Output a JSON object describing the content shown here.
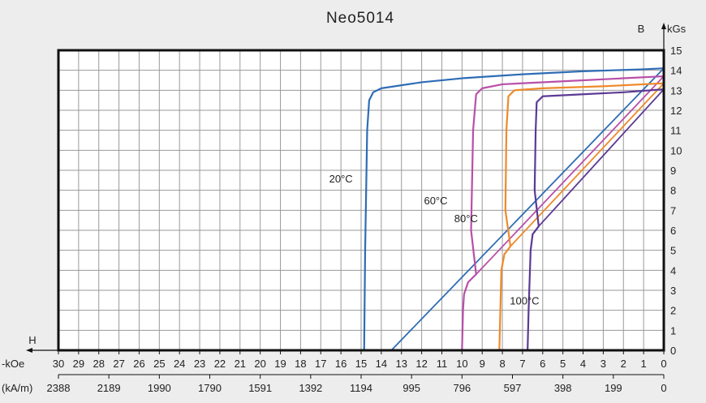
{
  "chart_data": {
    "type": "line",
    "title": "Neo5014",
    "ylabel": "B",
    "yunit": "kGs",
    "xlabel": "H",
    "xunit_primary": "-kOe",
    "xunit_secondary": "(kA/m)",
    "xlim": [
      30,
      0
    ],
    "ylim": [
      0,
      15
    ],
    "grid": true,
    "x_ticks_koe": [
      30,
      29,
      28,
      27,
      26,
      25,
      24,
      23,
      22,
      21,
      20,
      19,
      18,
      17,
      16,
      15,
      14,
      13,
      12,
      11,
      10,
      9,
      8,
      7,
      6,
      5,
      4,
      3,
      2,
      1,
      0
    ],
    "x_ticks_kam": [
      {
        "koe": 30,
        "label": "2388"
      },
      {
        "koe": 27.5,
        "label": "2189"
      },
      {
        "koe": 25,
        "label": "1990"
      },
      {
        "koe": 22.5,
        "label": "1790"
      },
      {
        "koe": 20,
        "label": "1591"
      },
      {
        "koe": 17.5,
        "label": "1392"
      },
      {
        "koe": 15,
        "label": "1194"
      },
      {
        "koe": 12.5,
        "label": "995"
      },
      {
        "koe": 10,
        "label": "796"
      },
      {
        "koe": 7.5,
        "label": "597"
      },
      {
        "koe": 5,
        "label": "398"
      },
      {
        "koe": 2.5,
        "label": "199"
      },
      {
        "koe": 0,
        "label": "0"
      }
    ],
    "y_ticks": [
      0,
      1,
      2,
      3,
      4,
      5,
      6,
      7,
      8,
      9,
      10,
      11,
      12,
      13,
      14,
      15
    ],
    "series": [
      {
        "name": "20°C",
        "color": "#2e6db5",
        "demag": [
          [
            14.85,
            0
          ],
          [
            14.8,
            5
          ],
          [
            14.7,
            11
          ],
          [
            14.6,
            12.5
          ],
          [
            14.4,
            12.9
          ],
          [
            14,
            13.1
          ],
          [
            12,
            13.4
          ],
          [
            10,
            13.6
          ],
          [
            7,
            13.8
          ],
          [
            4,
            13.95
          ],
          [
            1,
            14.05
          ],
          [
            0,
            14.1
          ]
        ],
        "loadline": [
          [
            13.5,
            0
          ],
          [
            0,
            14.1
          ]
        ],
        "label": {
          "text": "20°C",
          "x": 16.0,
          "y": 8.4
        }
      },
      {
        "name": "60°C",
        "color": "#b84fa8",
        "demag": [
          [
            10,
            0
          ],
          [
            9.95,
            2
          ],
          [
            9.9,
            2.8
          ],
          [
            9.7,
            3.4
          ],
          [
            9.3,
            3.8
          ],
          [
            9.55,
            6
          ],
          [
            9.45,
            11
          ],
          [
            9.3,
            12.8
          ],
          [
            9,
            13.1
          ],
          [
            8,
            13.3
          ],
          [
            5,
            13.45
          ],
          [
            2,
            13.6
          ],
          [
            0,
            13.7
          ]
        ],
        "loadline": [
          [
            9.3,
            3.8
          ],
          [
            0,
            13.7
          ]
        ],
        "label": {
          "text": "60°C",
          "x": 11.3,
          "y": 7.3
        }
      },
      {
        "name": "80°C",
        "color": "#ee8a2a",
        "demag": [
          [
            8.15,
            0
          ],
          [
            8.1,
            2
          ],
          [
            8.05,
            4
          ],
          [
            7.9,
            4.8
          ],
          [
            7.6,
            5.2
          ],
          [
            7.85,
            7
          ],
          [
            7.8,
            11
          ],
          [
            7.7,
            12.7
          ],
          [
            7.4,
            13
          ],
          [
            6,
            13.1
          ],
          [
            3,
            13.2
          ],
          [
            0,
            13.35
          ]
        ],
        "loadline": [
          [
            7.6,
            5.2
          ],
          [
            0,
            13.35
          ]
        ],
        "label": {
          "text": "80°C",
          "x": 9.8,
          "y": 6.4
        }
      },
      {
        "name": "100°C",
        "color": "#5c3a94",
        "demag": [
          [
            6.75,
            0
          ],
          [
            6.7,
            2
          ],
          [
            6.6,
            5
          ],
          [
            6.5,
            5.8
          ],
          [
            6.2,
            6.2
          ],
          [
            6.4,
            8
          ],
          [
            6.35,
            11
          ],
          [
            6.3,
            12.4
          ],
          [
            6.0,
            12.7
          ],
          [
            4,
            12.8
          ],
          [
            2,
            12.9
          ],
          [
            0,
            13.05
          ]
        ],
        "loadline": [
          [
            6.2,
            6.2
          ],
          [
            0,
            13.05
          ]
        ],
        "label": {
          "text": "100°C",
          "x": 6.9,
          "y": 2.3
        }
      }
    ]
  }
}
